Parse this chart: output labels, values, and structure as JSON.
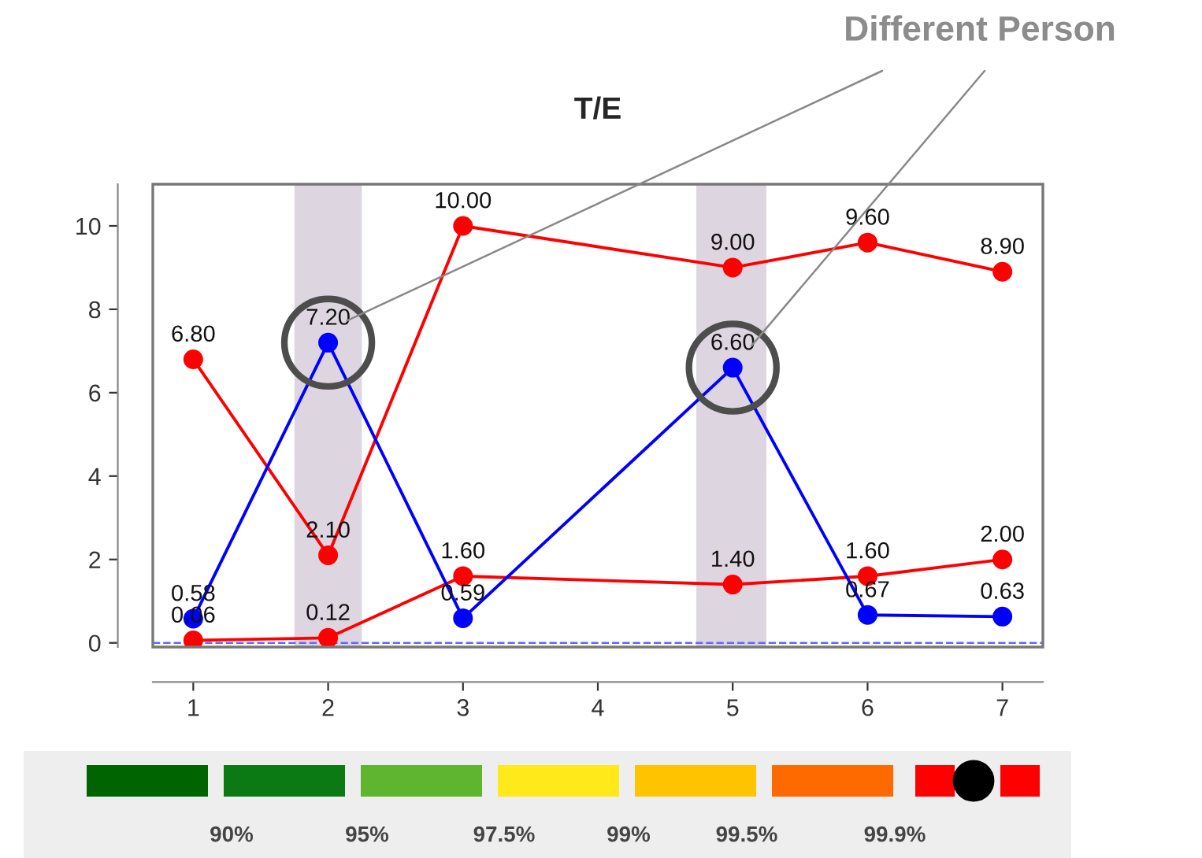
{
  "chart_data": {
    "type": "line",
    "title": "T/E",
    "series": [
      {
        "color": "#ff0000",
        "x": [
          1,
          2,
          3,
          5,
          6,
          7
        ],
        "values": [
          6.8,
          2.1,
          10.0,
          9.0,
          9.6,
          8.9
        ],
        "value_labels": [
          "6.80",
          "2.10",
          "10.00",
          "9.00",
          "9.60",
          "8.90"
        ]
      },
      {
        "color": "#ff0000",
        "x": [
          1,
          2,
          3,
          5,
          6,
          7
        ],
        "values": [
          0.06,
          0.12,
          1.6,
          1.4,
          1.6,
          2.0
        ],
        "value_labels": [
          "0.06",
          "0.12",
          "1.60",
          "1.40",
          "1.60",
          "2.00"
        ]
      },
      {
        "color": "#0000ff",
        "x": [
          1,
          2,
          3,
          5,
          6,
          7
        ],
        "values": [
          0.58,
          7.2,
          0.59,
          6.6,
          0.67,
          0.63
        ],
        "value_labels": [
          "0.58",
          "7.20",
          "0.59",
          "6.60",
          "0.67",
          "0.63"
        ]
      }
    ],
    "xlim": [
      0.7,
      7.3
    ],
    "xticks": [
      1,
      2,
      3,
      4,
      5,
      6,
      7
    ],
    "ylim": [
      -0.1,
      11
    ],
    "yticks": [
      0,
      2,
      4,
      6,
      8,
      10
    ],
    "bands": [
      {
        "axis": "x",
        "from": 1.75,
        "to": 2.25,
        "color": "#ddd5e0"
      },
      {
        "axis": "x",
        "from": 4.73,
        "to": 5.25,
        "color": "#ddd5e0"
      }
    ],
    "ref_lines": [
      {
        "axis": "y",
        "value": 0,
        "color": "#6666ff",
        "line_style": "dashed"
      }
    ],
    "marker": "circle",
    "line_style": "solid",
    "annotations": [
      "Different Person",
      "90%",
      "95%",
      "97.5%",
      "99%",
      "99.5%",
      "99.9%"
    ]
  }
}
